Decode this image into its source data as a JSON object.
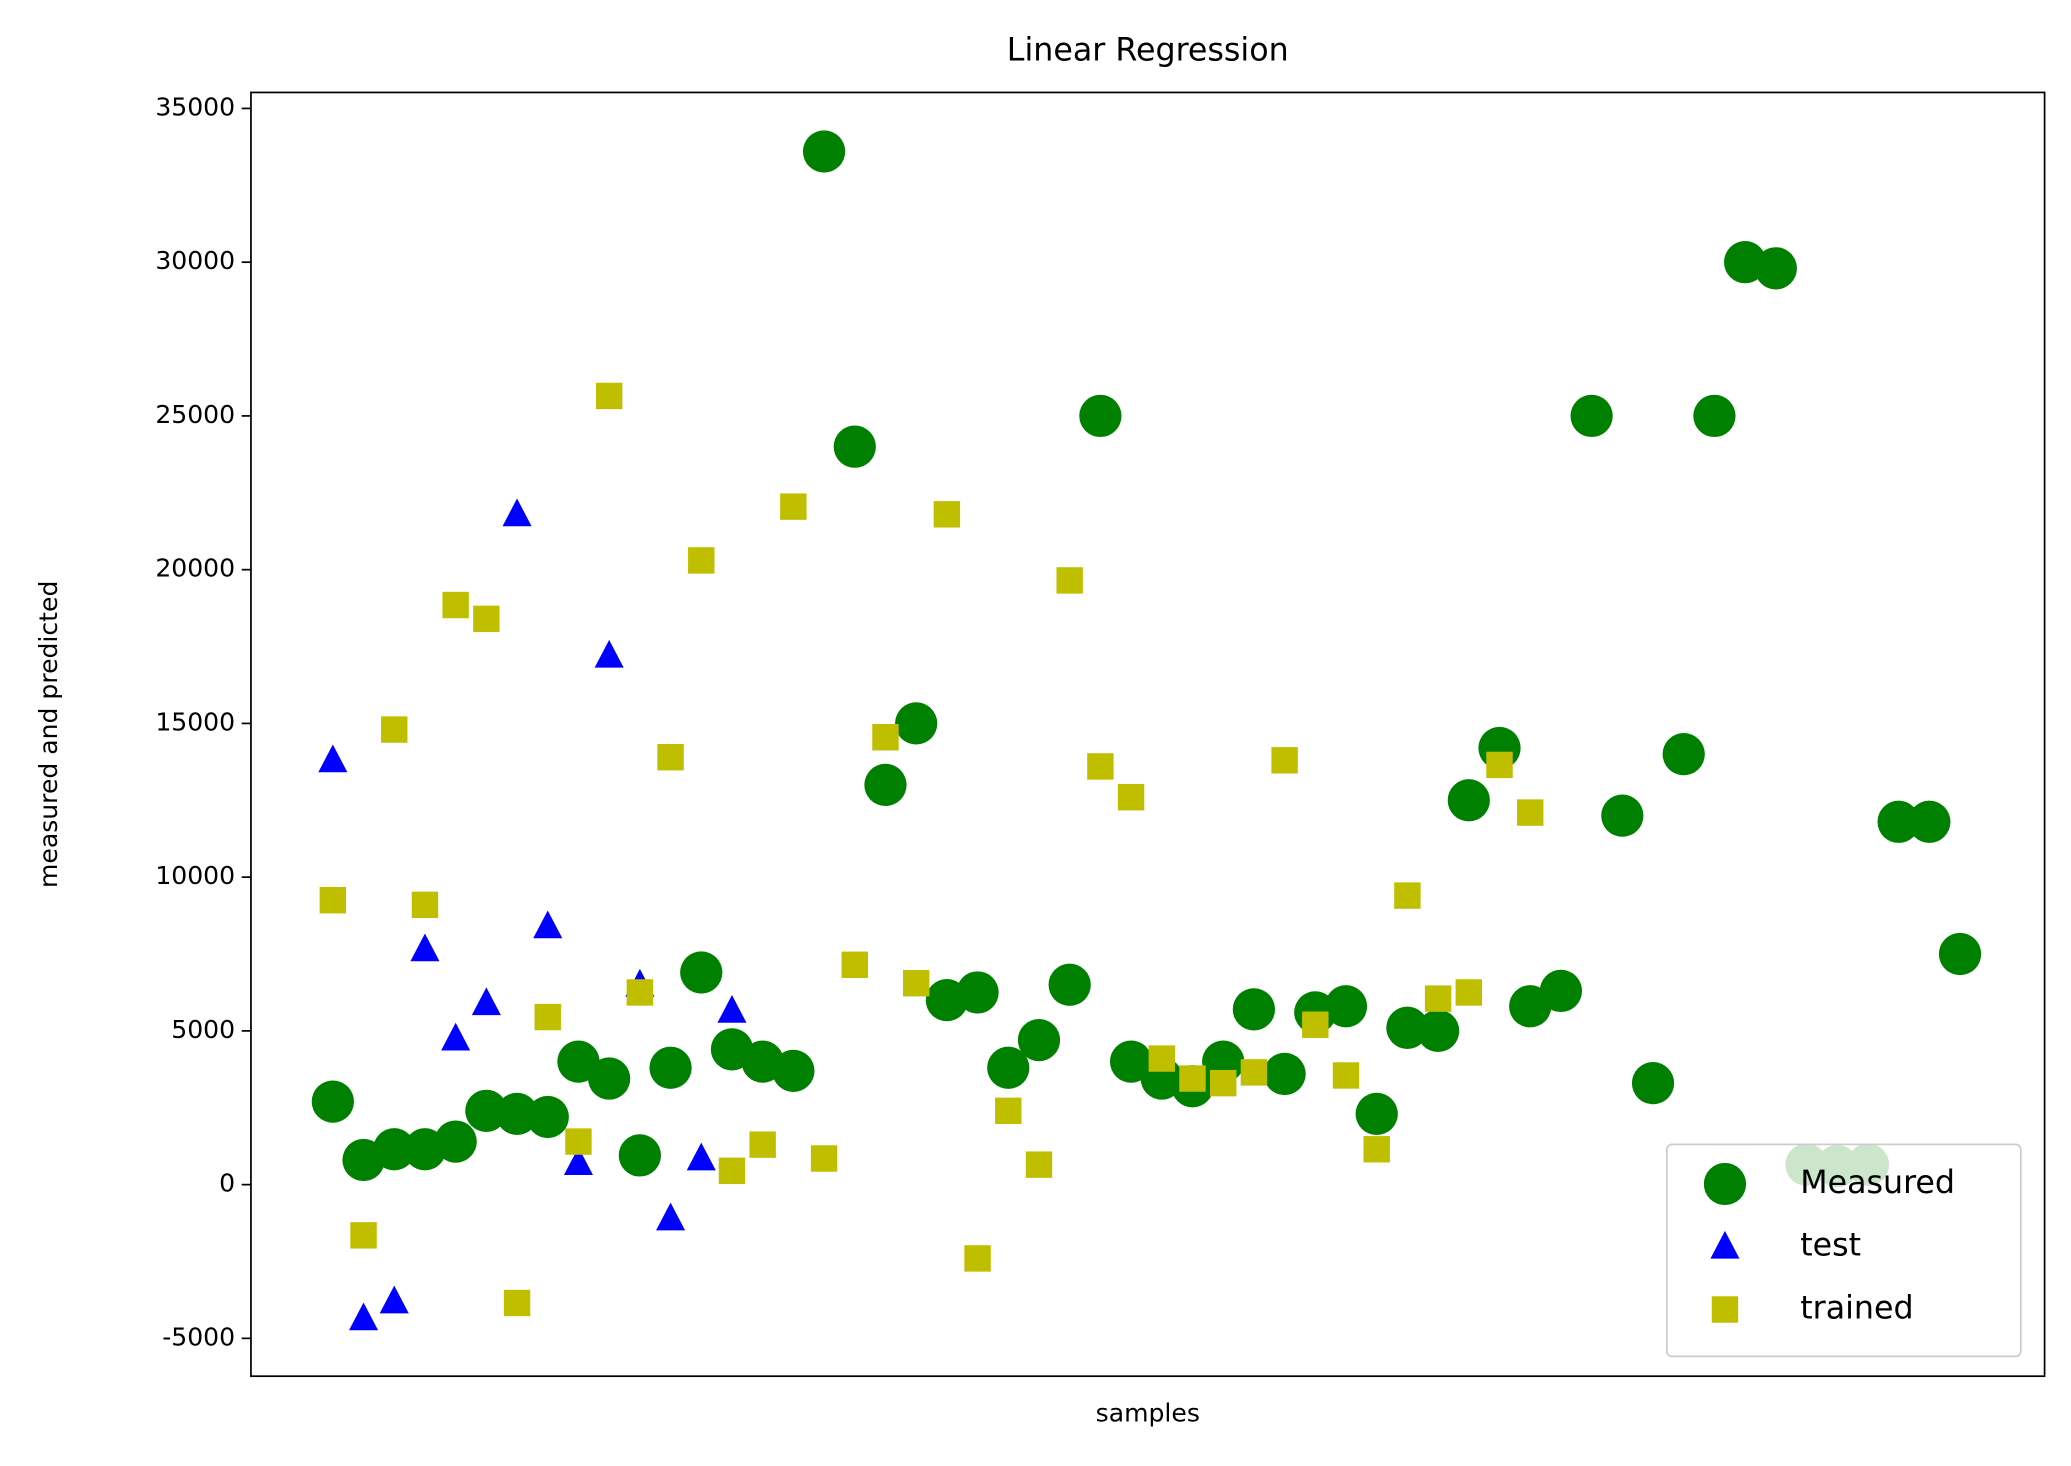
{
  "chart_data": {
    "type": "scatter",
    "title": "Linear Regression",
    "x_label": "samples",
    "y_label": "measured and predicted",
    "ylim": [
      -6230,
      35520
    ],
    "yticks": [
      -5000,
      0,
      5000,
      10000,
      15000,
      20000,
      25000,
      30000,
      35000
    ],
    "grid": false,
    "legend": "lower right",
    "series": [
      {
        "name": "Measured",
        "color": "#008000",
        "marker": "circle",
        "values": [
          2700,
          800,
          1150,
          1150,
          1400,
          2400,
          2300,
          2200,
          4000,
          3450,
          950,
          3800,
          6900,
          4400,
          4000,
          3700,
          33600,
          24000,
          13000,
          15000,
          6000,
          6250,
          3800,
          4700,
          6500,
          25000,
          4000,
          3450,
          3200,
          4000,
          5700,
          3600,
          5600,
          5800,
          2300,
          5100,
          5000,
          12500,
          14200,
          5800,
          6300,
          25000,
          12000,
          3300,
          14000,
          25000,
          30000,
          29800,
          650,
          600,
          650,
          11800,
          11800,
          7500
        ]
      },
      {
        "name": "test",
        "color": "#0000ff",
        "marker": "triangle",
        "values": [
          13800,
          -4350,
          -3800,
          7650,
          4750,
          5900,
          21800,
          8400,
          700,
          17200,
          6500,
          -1100,
          850,
          5650,
          null,
          null,
          null,
          null,
          null,
          null,
          null,
          null,
          null,
          null,
          null,
          null,
          null,
          null,
          null,
          null,
          null,
          null,
          null,
          null,
          null,
          null,
          null,
          null,
          null,
          null,
          null,
          null,
          null,
          null,
          null,
          null,
          null,
          null,
          null,
          null,
          null,
          null,
          null,
          null
        ]
      },
      {
        "name": "trained",
        "color": "#bfbf00",
        "marker": "square",
        "values": [
          9250,
          -1650,
          14800,
          9100,
          18850,
          18400,
          -3850,
          5450,
          1400,
          25650,
          6250,
          13900,
          20300,
          450,
          1300,
          22050,
          850,
          7150,
          14550,
          6550,
          21800,
          -2400,
          2400,
          650,
          19650,
          13600,
          12600,
          4100,
          3450,
          3300,
          3650,
          13800,
          5200,
          3550,
          1150,
          9400,
          6050,
          6250,
          13650,
          12100,
          null,
          null,
          null,
          null,
          null,
          null,
          null,
          null,
          null,
          null,
          null,
          null,
          null,
          null
        ]
      }
    ]
  }
}
